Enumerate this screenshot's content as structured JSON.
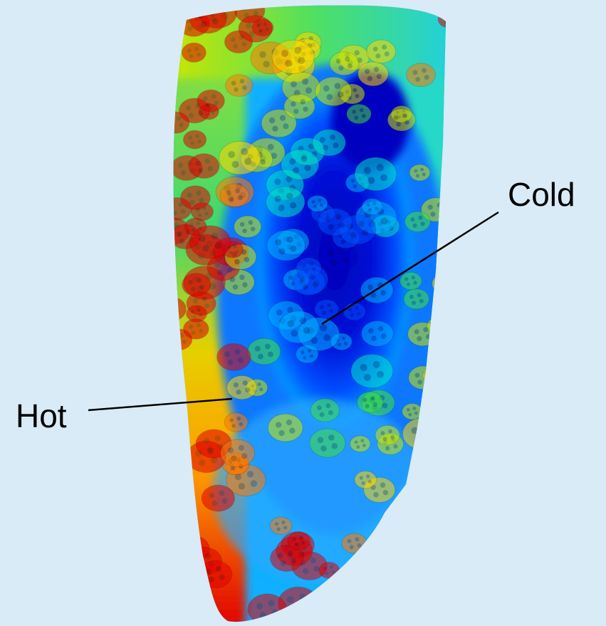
{
  "background_color": "#d9ebf6",
  "labels": {
    "cold": "Cold",
    "hot": "Hot"
  },
  "colormap": [
    "#0000c8",
    "#0050ff",
    "#00b4ff",
    "#00e6c8",
    "#40e040",
    "#c8e600",
    "#ffd700",
    "#ff7800",
    "#e00000"
  ]
}
